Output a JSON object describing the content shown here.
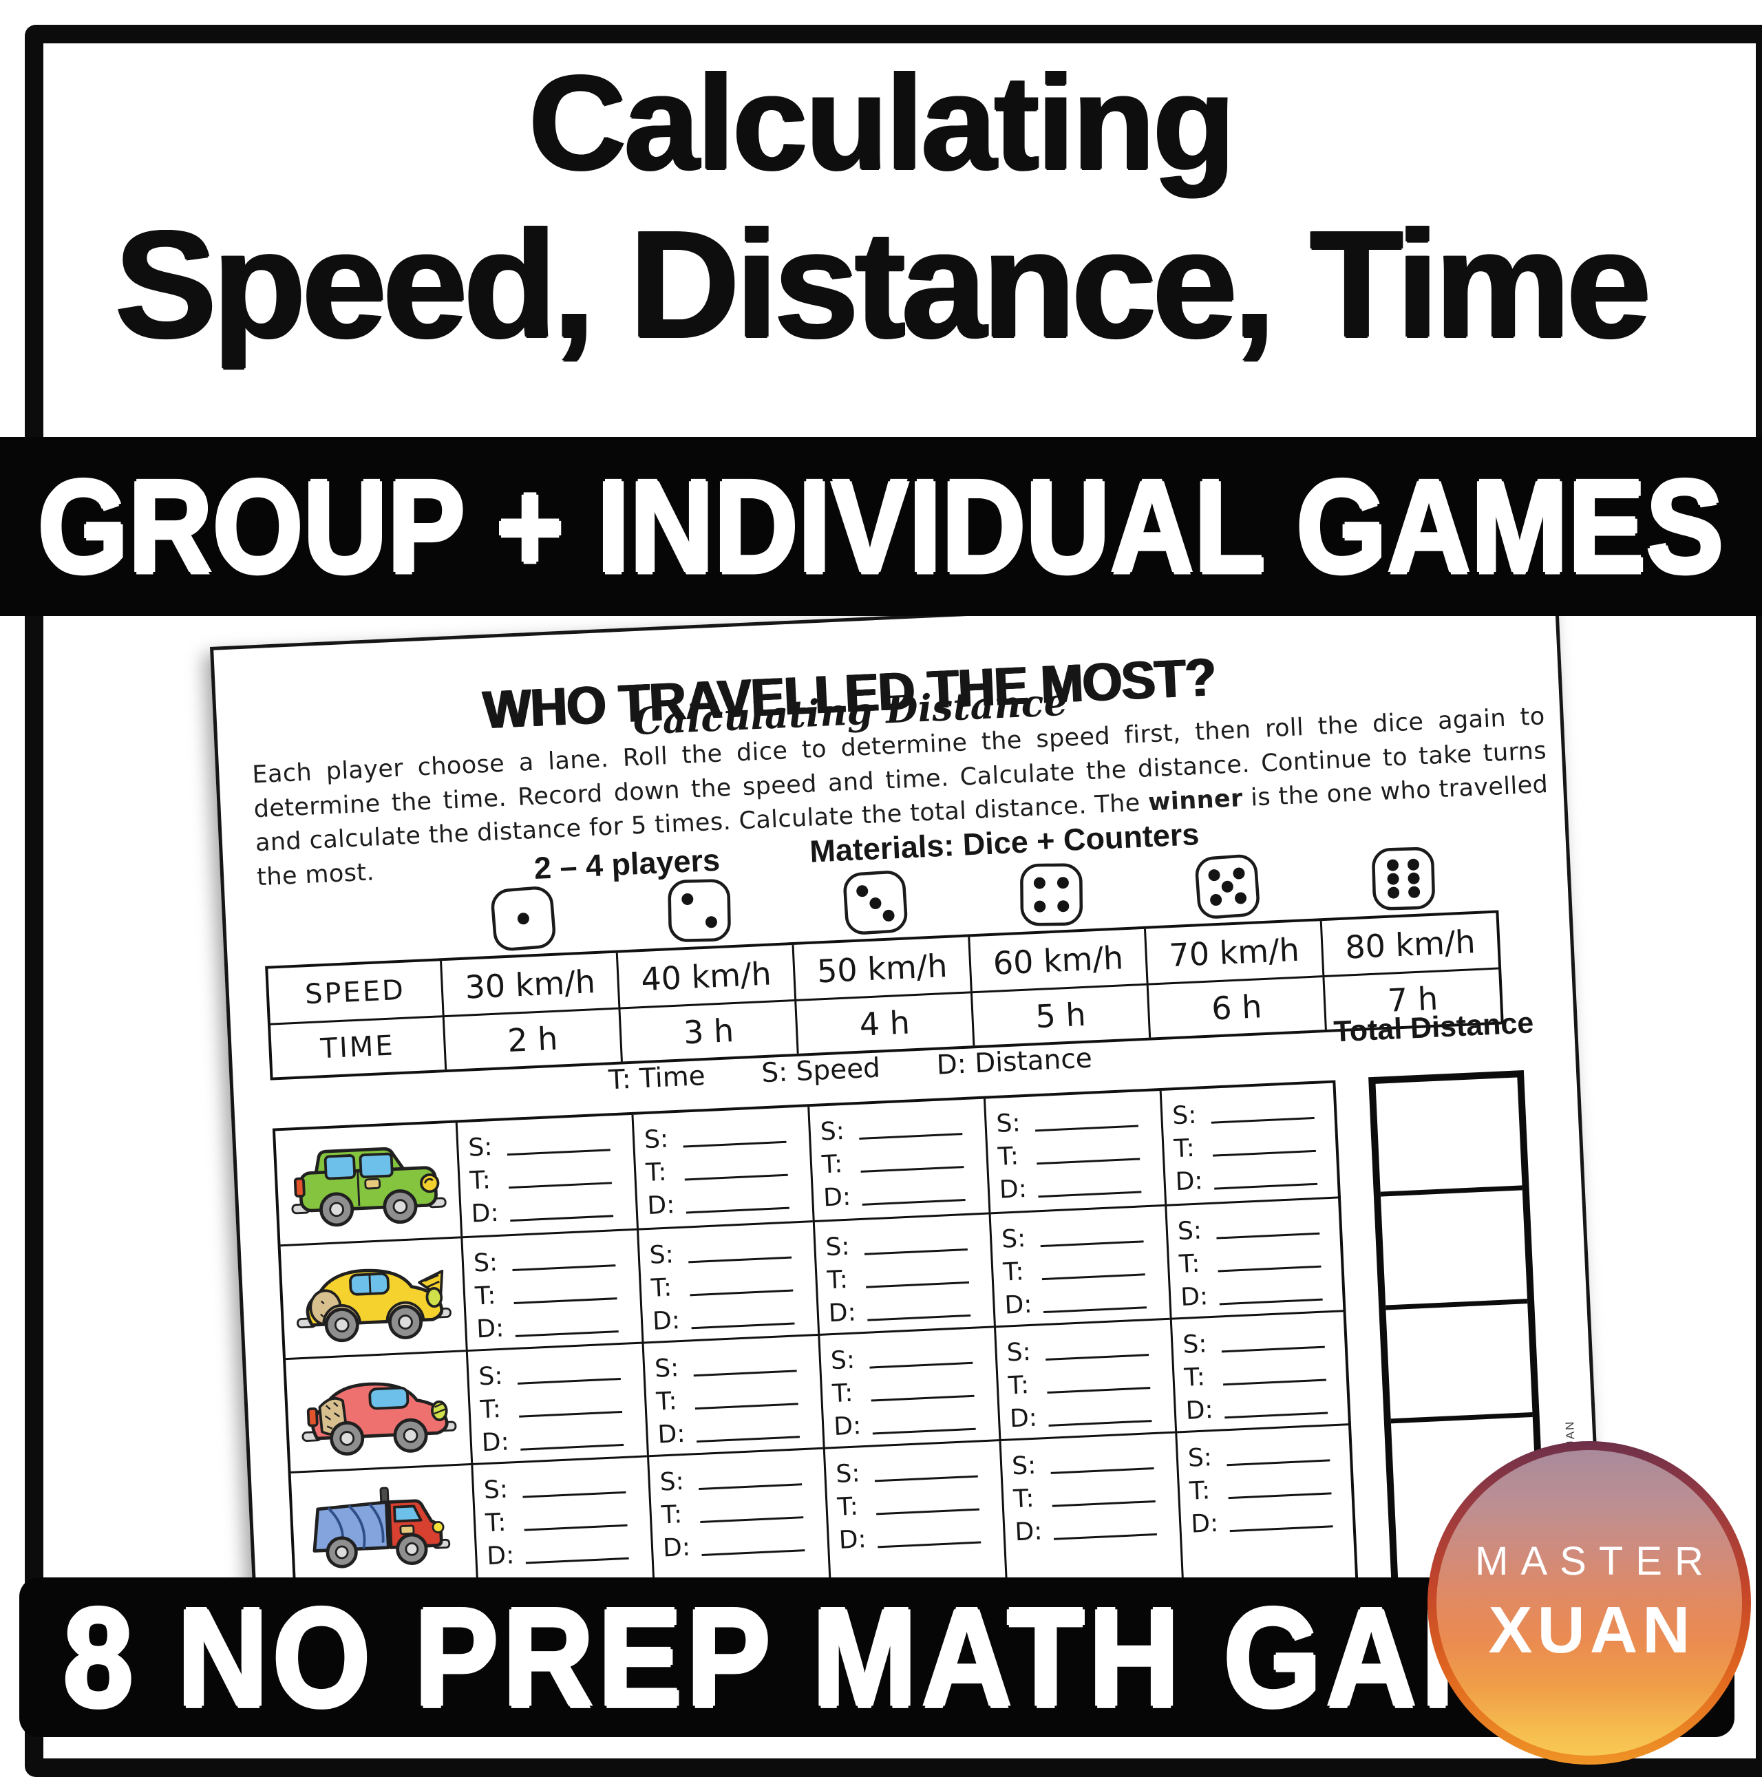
{
  "cover": {
    "title_line1": "Calculating",
    "title_line2": "Speed, Distance, Time",
    "banner_top": "GROUP + INDIVIDUAL GAMES",
    "banner_bottom": "8 NO PREP MATH GAMES"
  },
  "logo": {
    "line1": "MASTER",
    "line2": "XUAN"
  },
  "worksheet": {
    "title": "WHO TRAVELLED THE MOST?",
    "subtitle": "Calculating Distance",
    "instructions": {
      "pre": "Each player choose a lane. Roll the dice to determine the speed first, then roll the dice again to determine the time. Record down the speed and time. Calculate the distance. Continue to take turns and calculate the distance for 5 times. Calculate the total distance. The ",
      "bold": "winner",
      "post": " is the one who travelled the most."
    },
    "players": "2 – 4 players",
    "materials": "Materials: Dice + Counters",
    "speed_label": "SPEED",
    "time_label": "TIME",
    "dice": [
      1,
      2,
      3,
      4,
      5,
      6
    ],
    "speeds": [
      "30 km/h",
      "40 km/h",
      "50 km/h",
      "60 km/h",
      "70 km/h",
      "80 km/h"
    ],
    "times": [
      "2 h",
      "3 h",
      "4 h",
      "5 h",
      "6 h",
      "7 h"
    ],
    "legend": [
      "T: Time",
      "S: Speed",
      "D: Distance"
    ],
    "total_distance_header": "Total Distance",
    "turn_labels": [
      "S:",
      "T:",
      "D:"
    ],
    "turns_per_row": 5,
    "row_vehicles": [
      "green-suv",
      "yellow-car",
      "red-car",
      "dump-truck"
    ],
    "watermark": "MASTER XUAN"
  },
  "colors": {
    "band_black": "#060606",
    "ink": "#161616",
    "window_blue": "#6cc0ea",
    "suv_green": "#85c43e",
    "car_yellow": "#f5d22e",
    "car_red": "#ee7170",
    "truck_cab_red": "#d8402f",
    "truck_bed_blue": "#83a4dc",
    "tan": "#d8bf8e",
    "wheel_gray": "#8f8f8f",
    "hub_gray": "#dcdcdc",
    "light_yellow": "#f2d12e",
    "tail_orange": "#e2552c",
    "headlight_green": "#cfe04a",
    "bumper_gray": "#d9d9d9",
    "logo_top": "#6d3049",
    "logo_mid": "#c44529",
    "logo_bottom": "#f8c855"
  }
}
